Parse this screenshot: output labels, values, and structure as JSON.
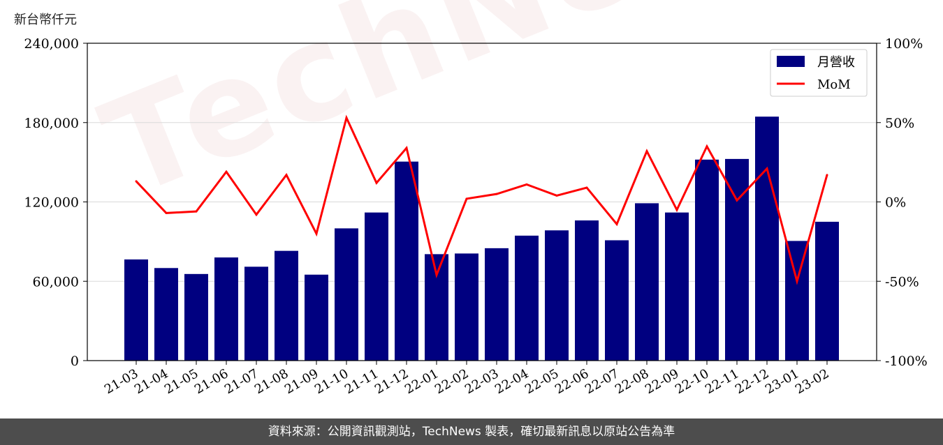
{
  "unit_label": "新台幣仟元",
  "footer": "資料來源：公開資訊觀測站，TechNews 製表，確切最新訊息以原站公告為準",
  "watermark": "TechNews",
  "colors": {
    "bar": "#000080",
    "line": "#ff0000",
    "grid": "#d9d9d9",
    "footer_bg": "#4d4d4d"
  },
  "chart_data": {
    "type": "bar",
    "categories": [
      "21-03",
      "21-04",
      "21-05",
      "21-06",
      "21-07",
      "21-08",
      "21-09",
      "21-10",
      "21-11",
      "21-12",
      "22-01",
      "22-02",
      "22-03",
      "22-04",
      "22-05",
      "22-06",
      "22-07",
      "22-08",
      "22-09",
      "22-10",
      "22-11",
      "22-12",
      "23-01",
      "23-02"
    ],
    "series": [
      {
        "name": "月營收",
        "type": "bar",
        "axis": "left",
        "values": [
          76500,
          70000,
          65500,
          78000,
          71000,
          83000,
          65000,
          100000,
          112000,
          150500,
          80500,
          81000,
          85000,
          94500,
          98500,
          106000,
          91000,
          119000,
          112000,
          152000,
          152500,
          184500,
          90500,
          105000
        ]
      },
      {
        "name": "MoM",
        "type": "line",
        "axis": "right",
        "values": [
          13,
          -7,
          -6,
          19,
          -8,
          17,
          -20,
          53,
          12,
          34,
          -46,
          2,
          5,
          11,
          4,
          9,
          -14,
          32,
          -5,
          35,
          1,
          21,
          -50,
          17
        ]
      }
    ],
    "y_left": {
      "range": [
        0,
        240000
      ],
      "ticks": [
        "0",
        "60,000",
        "120,000",
        "180,000",
        "240,000"
      ]
    },
    "y_right": {
      "range": [
        -100,
        100
      ],
      "ticks": [
        "-100%",
        "-50%",
        "0%",
        "50%",
        "100%"
      ]
    },
    "grid": true,
    "legend_position": "top-right"
  }
}
